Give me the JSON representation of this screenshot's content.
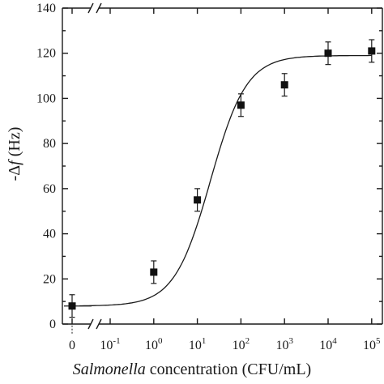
{
  "chart_data": {
    "type": "scatter",
    "xlabel_italic": "Salmonella",
    "xlabel_rest": " concentration (CFU/mL)",
    "ylabel_part1": "-Δ",
    "ylabel_italic": "f",
    "ylabel_part2": " (Hz)",
    "ylim": [
      0,
      140
    ],
    "yticks": [
      "0",
      "20",
      "40",
      "60",
      "80",
      "100",
      "120",
      "140"
    ],
    "xticks": [
      {
        "exp": 0,
        "label": "0",
        "zero": true
      },
      {
        "exp": -1,
        "label_base": "10",
        "label_exp": "-1"
      },
      {
        "exp": 0,
        "label_base": "10",
        "label_exp": "0"
      },
      {
        "exp": 1,
        "label_base": "10",
        "label_exp": "1"
      },
      {
        "exp": 2,
        "label_base": "10",
        "label_exp": "2"
      },
      {
        "exp": 3,
        "label_base": "10",
        "label_exp": "3"
      },
      {
        "exp": 4,
        "label_base": "10",
        "label_exp": "4"
      },
      {
        "exp": 5,
        "label_base": "10",
        "label_exp": "5"
      }
    ],
    "axis_break": true,
    "points": [
      {
        "x": "0",
        "y": 8,
        "err": 5
      },
      {
        "x": 1,
        "y": 23,
        "err": 5
      },
      {
        "x": 10,
        "y": 55,
        "err": 5
      },
      {
        "x": 100,
        "y": 97,
        "err": 5
      },
      {
        "x": 1000,
        "y": 106,
        "err": 5
      },
      {
        "x": 10000,
        "y": 120,
        "err": 5
      },
      {
        "x": 100000,
        "y": 121,
        "err": 5
      }
    ],
    "fit": {
      "type": "sigmoid",
      "bottom": 8,
      "top": 119,
      "log_x0": 1.3,
      "hill": 1.05,
      "log_x_range": [
        -1.7,
        5
      ]
    },
    "grid": false,
    "legend": "none"
  }
}
